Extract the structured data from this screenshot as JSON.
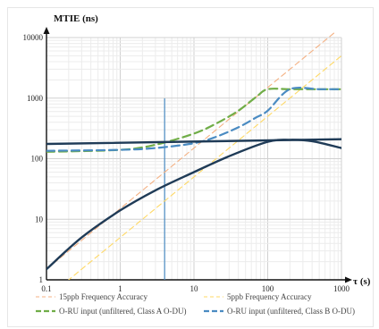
{
  "chart_data": {
    "type": "line",
    "ylabel": "MTIE (ns)",
    "xlabel": "τ (s)",
    "x_scale": "log",
    "y_scale": "log",
    "xlim": [
      0.1,
      1000
    ],
    "ylim": [
      1,
      10000
    ],
    "x_ticks": [
      "0.1",
      "1",
      "10",
      "100",
      "1000"
    ],
    "y_ticks": [
      "1",
      "10",
      "100",
      "1000",
      "10000"
    ],
    "grid": true,
    "legend_position": "bottom",
    "marker_tau": 4,
    "series": [
      {
        "name": "15ppb Frequency Accuracy",
        "color": "#f4b183",
        "style": "dashed-thin",
        "x": [
          0.1,
          1000
        ],
        "y": [
          1.5,
          15000
        ]
      },
      {
        "name": "5ppb Frequency Accuracy",
        "color": "#ffd966",
        "style": "dashed-thin",
        "x": [
          0.1,
          1000
        ],
        "y": [
          0.5,
          5000
        ]
      },
      {
        "name": "O-RU input (unfiltered, Class A O-DU)",
        "color": "#70ad47",
        "style": "dashed-thick",
        "x": [
          0.1,
          1,
          3,
          10,
          20,
          40,
          70,
          100,
          200,
          500,
          1000
        ],
        "y": [
          130,
          140,
          170,
          260,
          380,
          620,
          1050,
          1400,
          1400,
          1400,
          1400
        ]
      },
      {
        "name": "O-RU input (unfiltered, Class B O-DU)",
        "color": "#4a8bc2",
        "style": "dashed-thick",
        "x": [
          0.1,
          1,
          3,
          10,
          20,
          40,
          70,
          100,
          200,
          500,
          1000
        ],
        "y": [
          135,
          140,
          150,
          180,
          230,
          330,
          480,
          620,
          1400,
          1400,
          1400
        ]
      },
      {
        "name": "",
        "color": "#1f3b57",
        "style": "solid",
        "x": [
          0.1,
          0.3,
          1,
          3,
          10,
          30,
          100,
          200,
          400,
          1000
        ],
        "y": [
          1.5,
          5,
          14,
          30,
          60,
          110,
          190,
          205,
          195,
          150
        ]
      },
      {
        "name": "",
        "color": "#1f3b57",
        "style": "solid",
        "x": [
          0.1,
          1000
        ],
        "y": [
          175,
          210
        ]
      }
    ]
  }
}
